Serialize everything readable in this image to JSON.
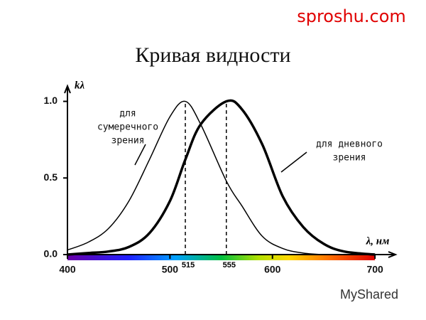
{
  "chart_data": {
    "type": "line",
    "title": "Кривая видности",
    "watermark": "sproshu.com",
    "brand": "MyShared",
    "ylabel": "kλ",
    "xlabel": "λ, нм",
    "x": [
      400,
      420,
      440,
      460,
      480,
      500,
      515,
      530,
      555,
      570,
      590,
      610,
      630,
      650,
      670,
      700
    ],
    "series": [
      {
        "name": [
          "для",
          "сумеречного",
          "зрения"
        ],
        "color": "#000000",
        "width": 1.5,
        "values": [
          0.03,
          0.08,
          0.17,
          0.35,
          0.62,
          0.9,
          1.0,
          0.85,
          0.48,
          0.32,
          0.12,
          0.04,
          0.01,
          0,
          0,
          0
        ]
      },
      {
        "name": [
          "для дневного",
          "зрения"
        ],
        "color": "#000000",
        "width": 3.5,
        "values": [
          0,
          0.01,
          0.02,
          0.05,
          0.14,
          0.35,
          0.62,
          0.85,
          1.0,
          0.95,
          0.72,
          0.38,
          0.18,
          0.07,
          0.02,
          0
        ]
      }
    ],
    "peaks": [
      {
        "value": 515,
        "label": "515"
      },
      {
        "value": 555,
        "label": "555"
      }
    ],
    "xlim": [
      400,
      720
    ],
    "ylim": [
      0,
      1.1
    ],
    "xticks": [
      400,
      500,
      600,
      700
    ],
    "yticks": [
      {
        "value": 0,
        "label": "0.0"
      },
      {
        "value": 0.5,
        "label": "0.5"
      },
      {
        "value": 1,
        "label": "1.0"
      }
    ]
  }
}
